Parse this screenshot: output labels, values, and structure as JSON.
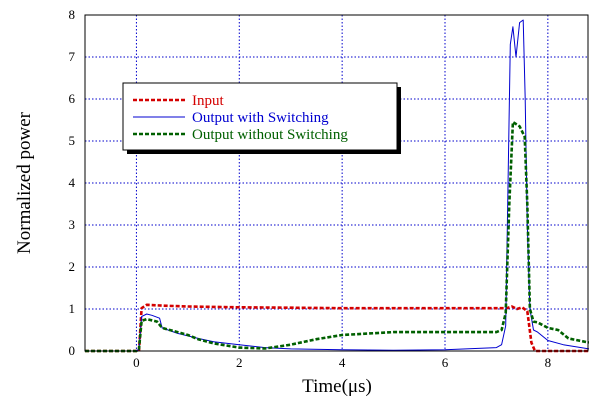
{
  "chart_data": {
    "type": "line",
    "xlabel": "Time(μs)",
    "ylabel": "Normalized power",
    "xlim": [
      -1,
      8.8
    ],
    "ylim": [
      0,
      8
    ],
    "x_ticks": [
      0,
      2,
      4,
      6,
      8
    ],
    "y_ticks": [
      0,
      1,
      2,
      3,
      4,
      5,
      6,
      7,
      8
    ],
    "grid": true,
    "legend_position": "upper-left",
    "series": [
      {
        "name": "Input",
        "color": "#d40000",
        "style": "dashed",
        "points": [
          [
            -1,
            0
          ],
          [
            0,
            0
          ],
          [
            0.05,
            0
          ],
          [
            0.1,
            1.02
          ],
          [
            0.2,
            1.1
          ],
          [
            0.5,
            1.08
          ],
          [
            1,
            1.06
          ],
          [
            2,
            1.04
          ],
          [
            3,
            1.03
          ],
          [
            4,
            1.02
          ],
          [
            5,
            1.02
          ],
          [
            6,
            1.02
          ],
          [
            7,
            1.02
          ],
          [
            7.2,
            1.02
          ],
          [
            7.3,
            1.06
          ],
          [
            7.4,
            1.0
          ],
          [
            7.5,
            1.04
          ],
          [
            7.6,
            0.95
          ],
          [
            7.68,
            0.2
          ],
          [
            7.75,
            0
          ],
          [
            8,
            0
          ],
          [
            8.8,
            0
          ]
        ]
      },
      {
        "name": "Output with Switching",
        "color": "#0000d0",
        "style": "solid",
        "points": [
          [
            -1,
            0
          ],
          [
            0,
            0
          ],
          [
            0.05,
            0.05
          ],
          [
            0.1,
            0.82
          ],
          [
            0.2,
            0.88
          ],
          [
            0.3,
            0.85
          ],
          [
            0.45,
            0.78
          ],
          [
            0.5,
            0.55
          ],
          [
            0.8,
            0.42
          ],
          [
            1.0,
            0.36
          ],
          [
            1.2,
            0.3
          ],
          [
            1.5,
            0.22
          ],
          [
            2,
            0.15
          ],
          [
            2.5,
            0.08
          ],
          [
            3,
            0.05
          ],
          [
            4,
            0.03
          ],
          [
            5,
            0.02
          ],
          [
            6,
            0.03
          ],
          [
            7,
            0.08
          ],
          [
            7.1,
            0.15
          ],
          [
            7.18,
            0.6
          ],
          [
            7.22,
            3.5
          ],
          [
            7.27,
            7.3
          ],
          [
            7.32,
            7.72
          ],
          [
            7.38,
            7.0
          ],
          [
            7.45,
            7.82
          ],
          [
            7.52,
            7.88
          ],
          [
            7.56,
            6.0
          ],
          [
            7.6,
            3.0
          ],
          [
            7.65,
            1.0
          ],
          [
            7.72,
            0.5
          ],
          [
            7.8,
            0.45
          ],
          [
            8,
            0.25
          ],
          [
            8.3,
            0.15
          ],
          [
            8.8,
            0.05
          ]
        ]
      },
      {
        "name": "Output without Switching",
        "color": "#006000",
        "style": "dashed",
        "points": [
          [
            -1,
            0
          ],
          [
            0,
            0
          ],
          [
            0.05,
            0.05
          ],
          [
            0.1,
            0.72
          ],
          [
            0.2,
            0.76
          ],
          [
            0.4,
            0.7
          ],
          [
            0.5,
            0.55
          ],
          [
            0.8,
            0.45
          ],
          [
            1.0,
            0.38
          ],
          [
            1.2,
            0.28
          ],
          [
            1.5,
            0.18
          ],
          [
            2,
            0.08
          ],
          [
            2.5,
            0.06
          ],
          [
            3,
            0.15
          ],
          [
            3.5,
            0.28
          ],
          [
            4,
            0.38
          ],
          [
            5,
            0.45
          ],
          [
            6,
            0.45
          ],
          [
            7,
            0.45
          ],
          [
            7.1,
            0.5
          ],
          [
            7.18,
            0.9
          ],
          [
            7.25,
            3.5
          ],
          [
            7.32,
            5.45
          ],
          [
            7.45,
            5.35
          ],
          [
            7.55,
            5.1
          ],
          [
            7.6,
            3.5
          ],
          [
            7.65,
            1.0
          ],
          [
            7.72,
            0.7
          ],
          [
            7.8,
            0.68
          ],
          [
            8,
            0.55
          ],
          [
            8.2,
            0.5
          ],
          [
            8.4,
            0.3
          ],
          [
            8.8,
            0.2
          ]
        ]
      }
    ]
  }
}
